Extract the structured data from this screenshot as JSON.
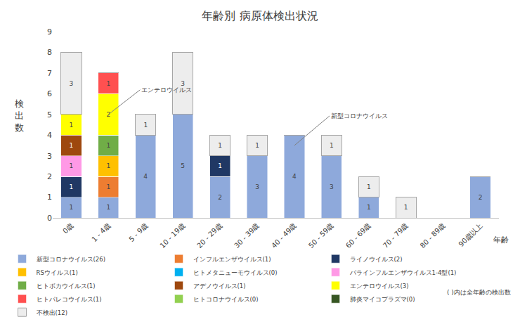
{
  "chart_data": {
    "type": "bar",
    "title": "年齢別 病原体検出状況",
    "x_label": "年齢",
    "y_label": "検出数",
    "categories": [
      "0歳",
      "1 - 4歳",
      "5 - 9歳",
      "10 - 19歳",
      "20 - 29歳",
      "30 - 39歳",
      "40 - 49歳",
      "50 - 59歳",
      "60 - 69歳",
      "70 - 79歳",
      "80 - 89歳",
      "90歳以上"
    ],
    "series": [
      {
        "name": "新型コロナウイルス(26)",
        "color": "#8EA9DB",
        "values": [
          1,
          1,
          4,
          5,
          2,
          3,
          4,
          3,
          1,
          0,
          0,
          2
        ]
      },
      {
        "name": "インフルエンザウイルス(1)",
        "color": "#ED7D31",
        "values": [
          0,
          1,
          0,
          0,
          0,
          0,
          0,
          0,
          0,
          0,
          0,
          0
        ]
      },
      {
        "name": "ライノウイルス(2)",
        "color": "#203864",
        "values": [
          1,
          0,
          0,
          0,
          1,
          0,
          0,
          0,
          0,
          0,
          0,
          0
        ]
      },
      {
        "name": "RSウイルス(1)",
        "color": "#FFC000",
        "values": [
          0,
          1,
          0,
          0,
          0,
          0,
          0,
          0,
          0,
          0,
          0,
          0
        ]
      },
      {
        "name": "ヒトメタニューモウイルス(0)",
        "color": "#00B0F0",
        "values": [
          0,
          0,
          0,
          0,
          0,
          0,
          0,
          0,
          0,
          0,
          0,
          0
        ]
      },
      {
        "name": "パラインフルエンザウイルス1-4型(1)",
        "color": "#FF99E6",
        "values": [
          1,
          0,
          0,
          0,
          0,
          0,
          0,
          0,
          0,
          0,
          0,
          0
        ]
      },
      {
        "name": "ヒトボカウイルス(1)",
        "color": "#70AD47",
        "values": [
          0,
          1,
          0,
          0,
          0,
          0,
          0,
          0,
          0,
          0,
          0,
          0
        ]
      },
      {
        "name": "アデノウイルス(1)",
        "color": "#9E480E",
        "values": [
          1,
          0,
          0,
          0,
          0,
          0,
          0,
          0,
          0,
          0,
          0,
          0
        ]
      },
      {
        "name": "エンテロウイルス(3)",
        "color": "#FFFF00",
        "values": [
          1,
          2,
          0,
          0,
          0,
          0,
          0,
          0,
          0,
          0,
          0,
          0
        ]
      },
      {
        "name": "ヒトパレコウイルス(1)",
        "color": "#FF5050",
        "values": [
          0,
          1,
          0,
          0,
          0,
          0,
          0,
          0,
          0,
          0,
          0,
          0
        ]
      },
      {
        "name": "ヒトコロナウイルス(0)",
        "color": "#92D050",
        "values": [
          0,
          0,
          0,
          0,
          0,
          0,
          0,
          0,
          0,
          0,
          0,
          0
        ]
      },
      {
        "name": "肺炎マイコプラズマ(0)",
        "color": "#375623",
        "values": [
          0,
          0,
          0,
          0,
          0,
          0,
          0,
          0,
          0,
          0,
          0,
          0
        ]
      },
      {
        "name": "不検出(12)",
        "color": "#EDEDED",
        "values": [
          3,
          0,
          1,
          3,
          1,
          1,
          0,
          1,
          1,
          1,
          0,
          0
        ]
      }
    ],
    "ylim": [
      0,
      9
    ],
    "yticks": [
      0,
      1,
      2,
      3,
      4,
      5,
      6,
      7,
      8,
      9
    ],
    "stacked": true,
    "data_labels": true,
    "grid": false,
    "legend": "bottom",
    "annotations": [
      {
        "text": "エンテロウイルス",
        "category": "1 - 4歳",
        "y": 5
      },
      {
        "text": "新型コロナウイルス",
        "category": "40 - 49歳",
        "y": 3.5
      }
    ],
    "note": "( )内は全年齢の検出数"
  }
}
